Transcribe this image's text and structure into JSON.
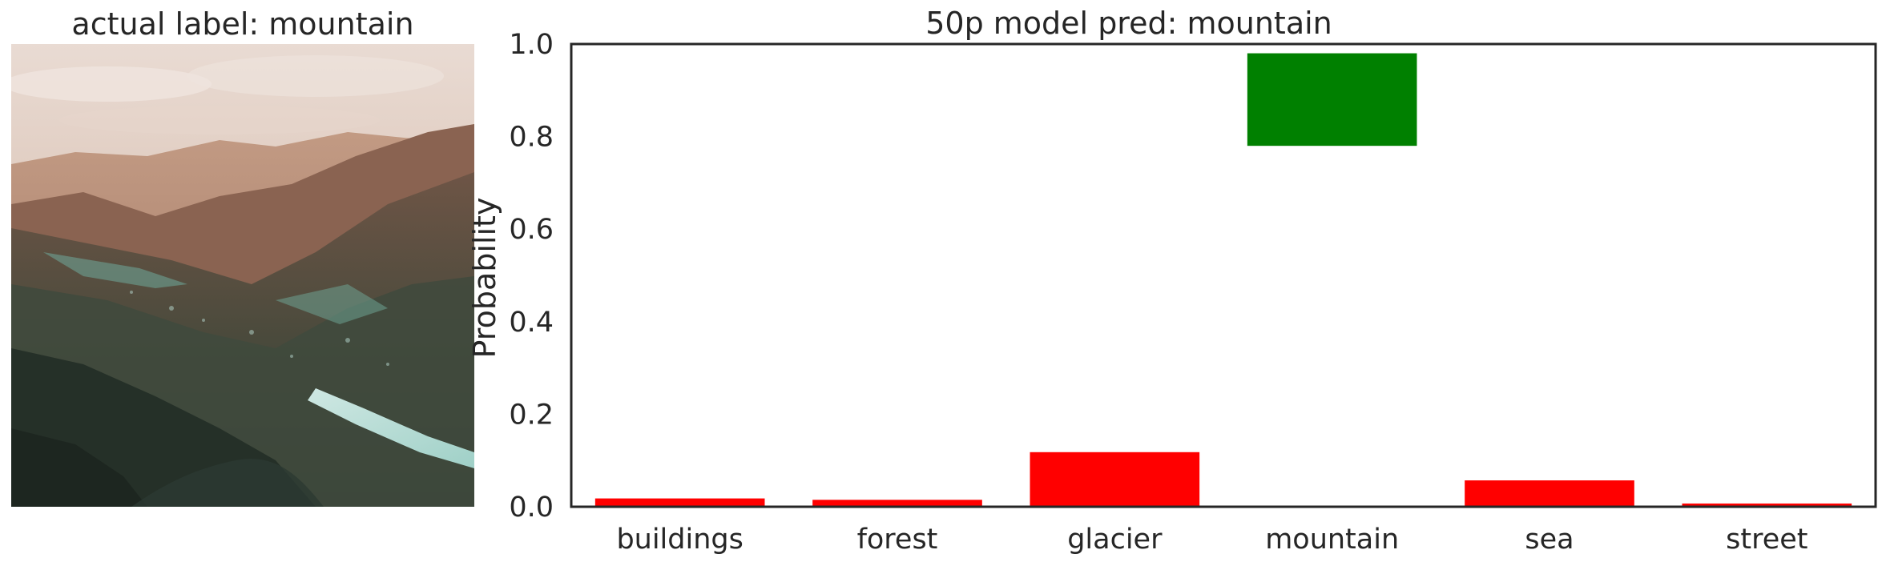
{
  "left_panel": {
    "title": "actual label: mountain"
  },
  "chart_data": {
    "type": "bar",
    "title": "50p model pred: mountain",
    "xlabel": "",
    "ylabel": "Probability",
    "categories": [
      "buildings",
      "forest",
      "glacier",
      "mountain",
      "sea",
      "street"
    ],
    "values": [
      0.018,
      0.015,
      0.118,
      0.2,
      0.057,
      0.007
    ],
    "bar_bottoms": [
      0,
      0,
      0,
      0.78,
      0,
      0
    ],
    "bar_colors": [
      "#ff0000",
      "#ff0000",
      "#ff0000",
      "#008000",
      "#ff0000",
      "#ff0000"
    ],
    "ylim": [
      0,
      1.0
    ],
    "yticks": [
      "0.0",
      "0.2",
      "0.4",
      "0.6",
      "0.8",
      "1.0"
    ],
    "grid": false,
    "legend": "none"
  }
}
